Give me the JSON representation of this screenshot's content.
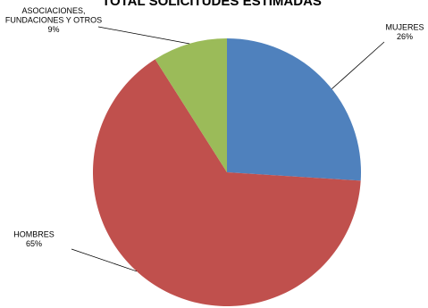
{
  "chart_data": {
    "type": "pie",
    "title": "TOTAL SOLICITUDES ESTIMADAS",
    "slices": [
      {
        "label": "MUJERES",
        "pct_label": "26%",
        "value": 26,
        "color": "#4f81bd"
      },
      {
        "label": "HOMBRES",
        "pct_label": "65%",
        "value": 65,
        "color": "#c0504d"
      },
      {
        "label": "ASOCIACIONES,\nFUNDACIONES Y OTROS",
        "pct_label": "9%",
        "value": 9,
        "color": "#9bbb59"
      }
    ],
    "legend": "none",
    "start": "top, clockwise"
  }
}
